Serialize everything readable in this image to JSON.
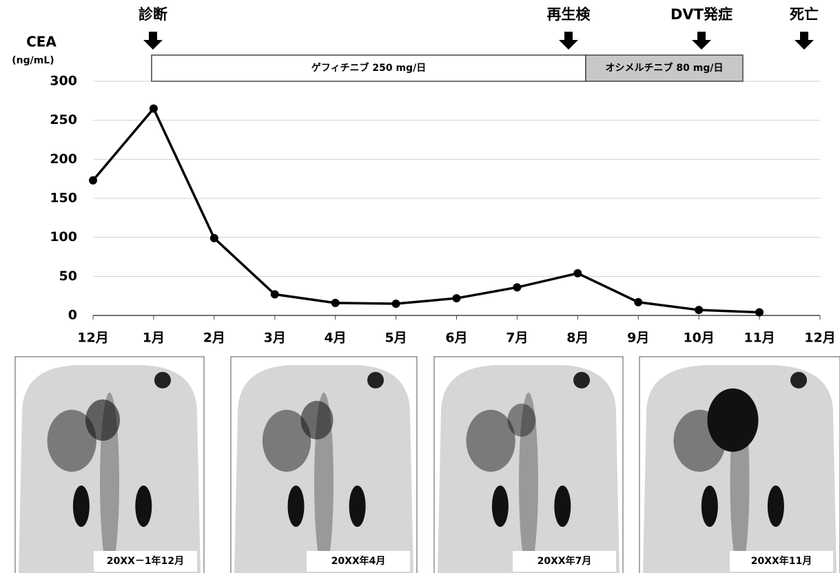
{
  "chart_data": {
    "type": "line",
    "y_title": "CEA",
    "y_unit": "(ng/mL)",
    "categories": [
      "12月",
      "1月",
      "2月",
      "3月",
      "4月",
      "5月",
      "6月",
      "7月",
      "8月",
      "9月",
      "10月",
      "11月",
      "12月"
    ],
    "values": [
      173,
      265,
      99,
      27,
      16,
      15,
      22,
      36,
      54,
      17,
      7,
      4,
      null
    ],
    "color": "#000000",
    "ylim": [
      0,
      300
    ],
    "yticks": [
      0,
      50,
      100,
      150,
      200,
      250,
      300
    ],
    "grid": true,
    "events": [
      "診断",
      "再生検",
      "DVT発症",
      "死亡"
    ],
    "treatments": [
      {
        "label": "ゲフィチニブ 250 mg/日",
        "color": "#ffffff"
      },
      {
        "label": "オシメルチニブ 80 mg/日",
        "color": "#c8c8c8"
      }
    ]
  },
  "images": {
    "captions": [
      "20XX－1年12月",
      "20XX年4月",
      "20XX年7月",
      "20XX年11月"
    ]
  }
}
